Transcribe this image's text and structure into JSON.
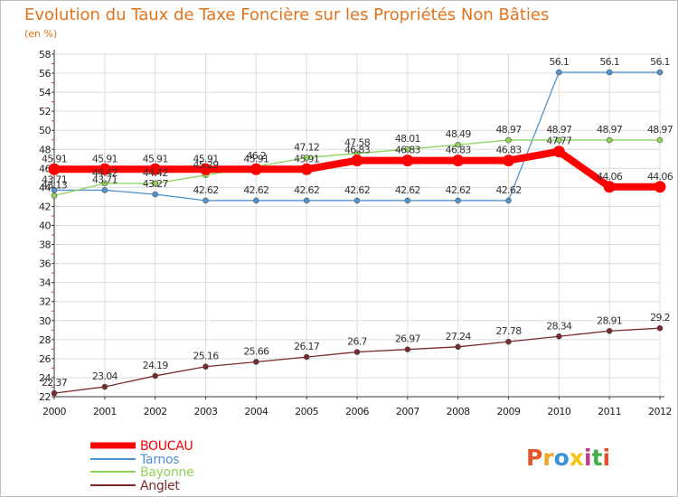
{
  "chart_data": {
    "type": "line",
    "title": "Evolution du Taux de Taxe Foncière sur les Propriétés Non Bâties",
    "subtitle": "(en %)",
    "xlabel": "",
    "ylabel": "",
    "categories": [
      "2000",
      "2001",
      "2002",
      "2003",
      "2004",
      "2005",
      "2006",
      "2007",
      "2008",
      "2009",
      "2010",
      "2011",
      "2012"
    ],
    "ylim": [
      22,
      58
    ],
    "yticks": [
      "22",
      "24",
      "26",
      "28",
      "30",
      "32",
      "34",
      "36",
      "38",
      "40",
      "42",
      "44",
      "46",
      "48",
      "50",
      "52",
      "54",
      "56",
      "58"
    ],
    "grid": true,
    "legend_position": "bottom-left",
    "series": [
      {
        "name": "BOUCAU",
        "color": "#ff0000",
        "values": [
          45.91,
          45.91,
          45.91,
          45.91,
          45.91,
          45.91,
          46.83,
          46.83,
          46.83,
          46.83,
          47.77,
          44.06,
          44.06
        ],
        "labels": [
          "45.91",
          "45.91",
          "45.91",
          "45.91",
          "45.91",
          "45.91",
          "46.83",
          "46.83",
          "46.83",
          "46.83",
          "47.77",
          "44.06",
          "44.06"
        ]
      },
      {
        "name": "Tarnos",
        "color": "#4f93cf",
        "values": [
          43.71,
          43.71,
          43.27,
          42.62,
          42.62,
          42.62,
          42.62,
          42.62,
          42.62,
          42.62,
          56.1,
          56.1,
          56.1
        ],
        "labels": [
          "43.71",
          "43.71",
          "43.27",
          "42.62",
          "42.62",
          "42.62",
          "42.62",
          "42.62",
          "42.62",
          "42.62",
          "56.1",
          "56.1",
          "56.1"
        ]
      },
      {
        "name": "Bayonne",
        "color": "#8ed45a",
        "values": [
          43.13,
          44.42,
          44.42,
          45.29,
          46.2,
          47.12,
          47.58,
          48.01,
          48.49,
          48.97,
          48.97,
          48.97,
          48.97
        ],
        "labels": [
          "43.13",
          "44.42",
          "44.42",
          "45.29",
          "46.2",
          "47.12",
          "47.58",
          "48.01",
          "48.49",
          "48.97",
          "48.97",
          "48.97",
          "48.97"
        ]
      },
      {
        "name": "Anglet",
        "color": "#7a2a2a",
        "values": [
          22.37,
          23.04,
          24.19,
          25.16,
          25.66,
          26.17,
          26.7,
          26.97,
          27.24,
          27.78,
          28.34,
          28.91,
          29.2
        ],
        "labels": [
          "22.37",
          "23.04",
          "24.19",
          "25.16",
          "25.66",
          "26.17",
          "26.7",
          "26.97",
          "27.24",
          "27.78",
          "28.34",
          "28.91",
          "29.2"
        ]
      }
    ]
  },
  "logo": {
    "text": "Proxiti",
    "letter_colors": [
      "#e5572b",
      "#f0a523",
      "#3a92d4",
      "#f2c413",
      "#c23a8f",
      "#3fae49",
      "#e4502d"
    ]
  }
}
